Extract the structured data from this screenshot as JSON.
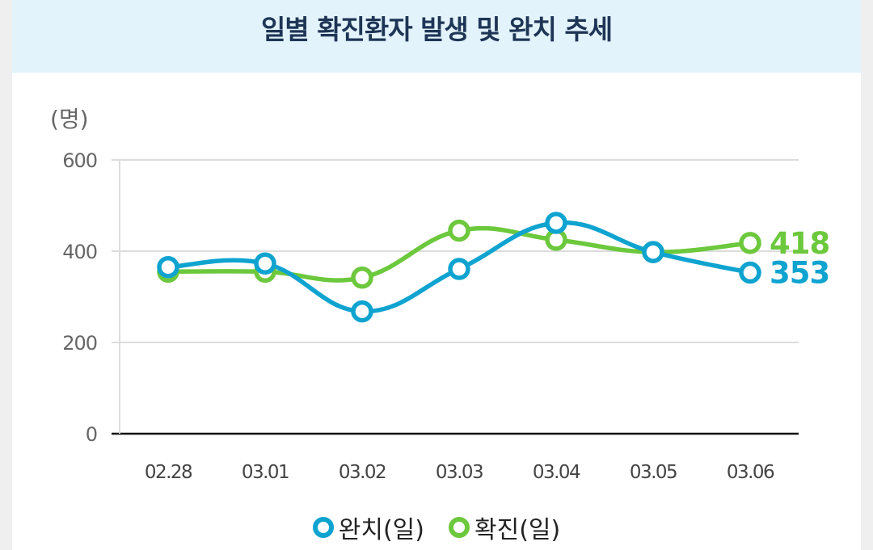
{
  "chart_data": {
    "type": "line",
    "title": "일별 확진환자 발생 및 완치 추세",
    "ylabel": "(명)",
    "xlabel": "",
    "ylim": [
      0,
      600
    ],
    "yticks": [
      0,
      200,
      400,
      600
    ],
    "categories": [
      "02.28",
      "03.01",
      "03.02",
      "03.03",
      "03.04",
      "03.05",
      "03.06"
    ],
    "series": [
      {
        "name": "완치(일)",
        "color": "#0fa3d0",
        "values": [
          365,
          373,
          268,
          361,
          462,
          398,
          353
        ],
        "end_label": "353"
      },
      {
        "name": "확진(일)",
        "color": "#6cc83c",
        "values": [
          355,
          355,
          342,
          445,
          425,
          398,
          418
        ],
        "end_label": "418"
      }
    ],
    "legend": [
      "완치(일)",
      "확진(일)"
    ],
    "grid": true
  }
}
